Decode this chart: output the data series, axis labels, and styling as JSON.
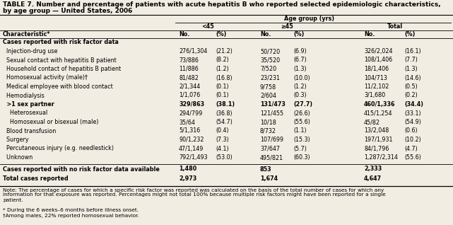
{
  "title_line1": "TABLE 7. Number and percentage of patients with acute hepatitis B who reported selected epidemiologic characteristics,",
  "title_line2": "by age group — United States, 2006",
  "characteristic_label": "Characteristic*",
  "section_header": "Cases reported with risk factor data",
  "rows": [
    {
      "label": "  Injection-drug use",
      "bold": false,
      "lt45_no": "276/1,304",
      "lt45_pct": "(21.2)",
      "ge45_no": "50/720",
      "ge45_pct": "(6.9)",
      "tot_no": "326/2,024",
      "tot_pct": "(16.1)"
    },
    {
      "label": "  Sexual contact with hepatitis B patient",
      "bold": false,
      "lt45_no": "73/886",
      "lt45_pct": "(8.2)",
      "ge45_no": "35/520",
      "ge45_pct": "(6.7)",
      "tot_no": "108/1,406",
      "tot_pct": "(7.7)"
    },
    {
      "label": "  Household contact of hepatitis B patient",
      "bold": false,
      "lt45_no": "11/886",
      "lt45_pct": "(1.2)",
      "ge45_no": "7/520",
      "ge45_pct": "(1.3)",
      "tot_no": "18/1,406",
      "tot_pct": "(1.3)"
    },
    {
      "label": "  Homosexual activity (male)†",
      "bold": false,
      "lt45_no": "81/482",
      "lt45_pct": "(16.8)",
      "ge45_no": "23/231",
      "ge45_pct": "(10.0)",
      "tot_no": "104/713",
      "tot_pct": "(14.6)"
    },
    {
      "label": "  Medical employee with blood contact",
      "bold": false,
      "lt45_no": "2/1,344",
      "lt45_pct": "(0.1)",
      "ge45_no": "9/758",
      "ge45_pct": "(1.2)",
      "tot_no": "11/2,102",
      "tot_pct": "(0.5)"
    },
    {
      "label": "  Hemodialysis",
      "bold": false,
      "lt45_no": "1/1,076",
      "lt45_pct": "(0.1)",
      "ge45_no": "2/604",
      "ge45_pct": "(0.3)",
      "tot_no": "3/1,680",
      "tot_pct": "(0.2)"
    },
    {
      "label": "  >1 sex partner",
      "bold": true,
      "lt45_no": "329/863",
      "lt45_pct": "(38.1)",
      "ge45_no": "131/473",
      "ge45_pct": "(27.7)",
      "tot_no": "460/1,336",
      "tot_pct": "(34.4)"
    },
    {
      "label": "    Heterosexual",
      "bold": false,
      "lt45_no": "294/799",
      "lt45_pct": "(36.8)",
      "ge45_no": "121/455",
      "ge45_pct": "(26.6)",
      "tot_no": "415/1,254",
      "tot_pct": "(33.1)"
    },
    {
      "label": "    Homosexual or bisexual (male)",
      "bold": false,
      "lt45_no": "35/64",
      "lt45_pct": "(54.7)",
      "ge45_no": "10/18",
      "ge45_pct": "(55.6)",
      "tot_no": "45/82",
      "tot_pct": "(54.9)"
    },
    {
      "label": "  Blood transfusion",
      "bold": false,
      "lt45_no": "5/1,316",
      "lt45_pct": "(0.4)",
      "ge45_no": "8/732",
      "ge45_pct": "(1.1)",
      "tot_no": "13/2,048",
      "tot_pct": "(0.6)"
    },
    {
      "label": "  Surgery",
      "bold": false,
      "lt45_no": "90/1,232",
      "lt45_pct": "(7.3)",
      "ge45_no": "107/699",
      "ge45_pct": "(15.3)",
      "tot_no": "197/1,931",
      "tot_pct": "(10.2)"
    },
    {
      "label": "  Percutaneous injury (e.g. needlestick)",
      "bold": false,
      "lt45_no": "47/1,149",
      "lt45_pct": "(4.1)",
      "ge45_no": "37/647",
      "ge45_pct": "(5.7)",
      "tot_no": "84/1,796",
      "tot_pct": "(4.7)"
    },
    {
      "label": "  Unknown",
      "bold": false,
      "lt45_no": "792/1,493",
      "lt45_pct": "(53.0)",
      "ge45_no": "495/821",
      "ge45_pct": "(60.3)",
      "tot_no": "1,287/2,314",
      "tot_pct": "(55.6)"
    }
  ],
  "summary_rows": [
    {
      "label": "Cases reported with no risk factor data available",
      "bold": true,
      "lt45_no": "1,480",
      "ge45_no": "853",
      "tot_no": "2,333"
    },
    {
      "label": "Total cases reported",
      "bold": true,
      "lt45_no": "2,973",
      "ge45_no": "1,674",
      "tot_no": "4,647"
    }
  ],
  "note": "Note: The percentage of cases for which a specific risk factor was reported was calculated on the basis of the total number of cases for which any\ninformation for that exposure was reported. Percentages might not total 100% because multiple risk factors might have been reported for a single\npatient.",
  "footnote1": "* During the 6 weeks–6 months before illness onset.",
  "footnote2": "†Among males, 22% reported homosexual behavior.",
  "bg_color": "#f2ede3",
  "font_size": 5.8,
  "title_font_size": 6.5
}
